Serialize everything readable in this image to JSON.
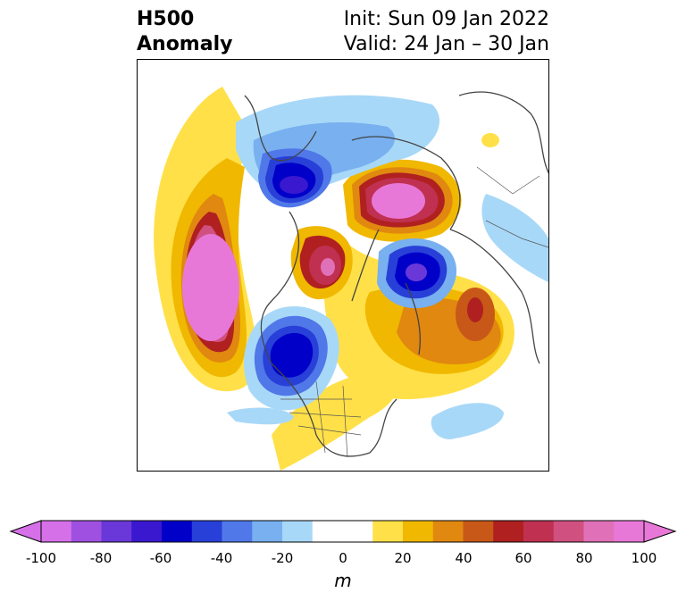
{
  "header": {
    "title_line1": "H500",
    "title_line2": "Anomaly",
    "init_text": "Init: Sun 09 Jan 2022",
    "valid_text": "Valid: 24 Jan – 30 Jan"
  },
  "colorbar": {
    "unit": "m",
    "ticks": [
      "-100",
      "-80",
      "-60",
      "-40",
      "-20",
      "0",
      "20",
      "40",
      "60",
      "80",
      "100"
    ],
    "colors": [
      "#d670e8",
      "#a050e0",
      "#6a38d8",
      "#3a18d0",
      "#0000c8",
      "#2840d8",
      "#5078e8",
      "#78b0f0",
      "#a8d8f8",
      "#ffffff",
      "#ffffff",
      "#ffe048",
      "#f0b800",
      "#e08810",
      "#c85818",
      "#b02020",
      "#c03050",
      "#d05080",
      "#e070b8",
      "#e878d8"
    ]
  }
}
